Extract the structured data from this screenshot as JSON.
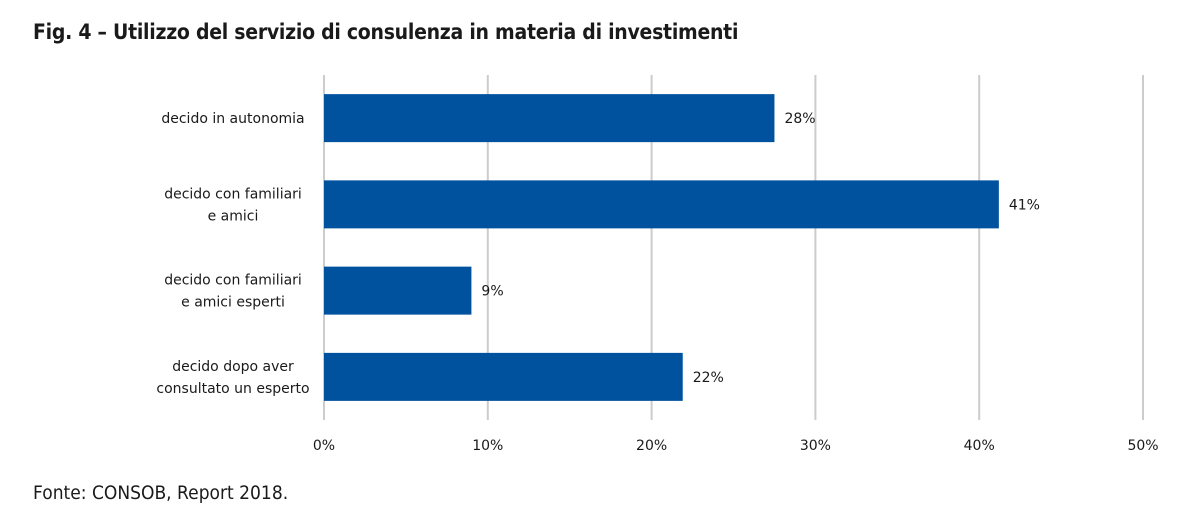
{
  "title": "Fig. 4 – Utilizzo del servizio di consulenza in materia di investimenti",
  "source": "Fonte: CONSOB, Report 2018.",
  "colors": {
    "bar": "#00529f",
    "grid": "#cccccc"
  },
  "chart_data": {
    "type": "bar",
    "orientation": "horizontal",
    "title": "Fig. 4 – Utilizzo del servizio di consulenza in materia di investimenti",
    "categories": [
      [
        "decido in autonomia"
      ],
      [
        "decido con familiari",
        "e amici"
      ],
      [
        "decido con familiari",
        "e amici esperti"
      ],
      [
        "decido dopo aver",
        "consultato un esperto"
      ]
    ],
    "values": [
      27.5,
      41.2,
      9.0,
      21.9
    ],
    "value_labels": [
      "28%",
      "41%",
      "9%",
      "22%"
    ],
    "xlim": [
      0,
      50
    ],
    "xticks": [
      0,
      10,
      20,
      30,
      40,
      50
    ],
    "xtick_labels": [
      "0%",
      "10%",
      "20%",
      "30%",
      "40%",
      "50%"
    ],
    "xlabel": "",
    "ylabel": "",
    "grid": "vertical",
    "legend": "none"
  }
}
